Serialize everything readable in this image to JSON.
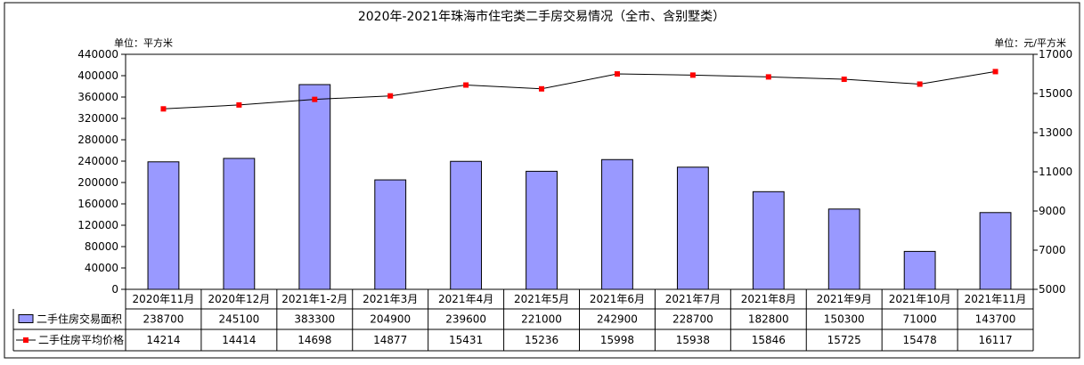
{
  "chart_data": {
    "type": "bar+line",
    "title": "2020年-2021年珠海市住宅类二手房交易情况（全市、含别墅类）",
    "left_unit": "单位：平方米",
    "right_unit": "单位：元/平方米",
    "categories": [
      "2020年11月",
      "2020年12月",
      "2021年1-2月",
      "2021年3月",
      "2021年4月",
      "2021年5月",
      "2021年6月",
      "2021年7月",
      "2021年8月",
      "2021年9月",
      "2021年10月",
      "2021年11月"
    ],
    "y_left": {
      "min": 0,
      "max": 440000,
      "step": 40000,
      "ticks": [
        "0",
        "40000",
        "80000",
        "120000",
        "160000",
        "200000",
        "240000",
        "280000",
        "320000",
        "360000",
        "400000",
        "440000"
      ]
    },
    "y_right": {
      "min": 5000,
      "max": 17000,
      "step": 2000,
      "ticks": [
        "5000",
        "7000",
        "9000",
        "11000",
        "13000",
        "15000",
        "17000"
      ]
    },
    "series": [
      {
        "name": "二手住房交易面积",
        "type": "bar",
        "axis": "left",
        "color": "#9999ff",
        "values": [
          238700,
          245100,
          383300,
          204900,
          239600,
          221000,
          242900,
          228700,
          182800,
          150300,
          71000,
          143700
        ],
        "labels": [
          "238700",
          "245100",
          "383300",
          "204900",
          "239600",
          "221000",
          "242900",
          "228700",
          "182800",
          "150300",
          "71000",
          "143700"
        ]
      },
      {
        "name": "二手住房平均价格",
        "type": "line",
        "axis": "right",
        "color": "#ff0000",
        "values": [
          14214,
          14414,
          14698,
          14877,
          15431,
          15236,
          15998,
          15938,
          15846,
          15725,
          15478,
          16117
        ],
        "labels": [
          "14214",
          "14414",
          "14698",
          "14877",
          "15431",
          "15236",
          "15998",
          "15938",
          "15846",
          "15725",
          "15478",
          "16117"
        ]
      }
    ],
    "grid": false,
    "legend": "data-table"
  }
}
